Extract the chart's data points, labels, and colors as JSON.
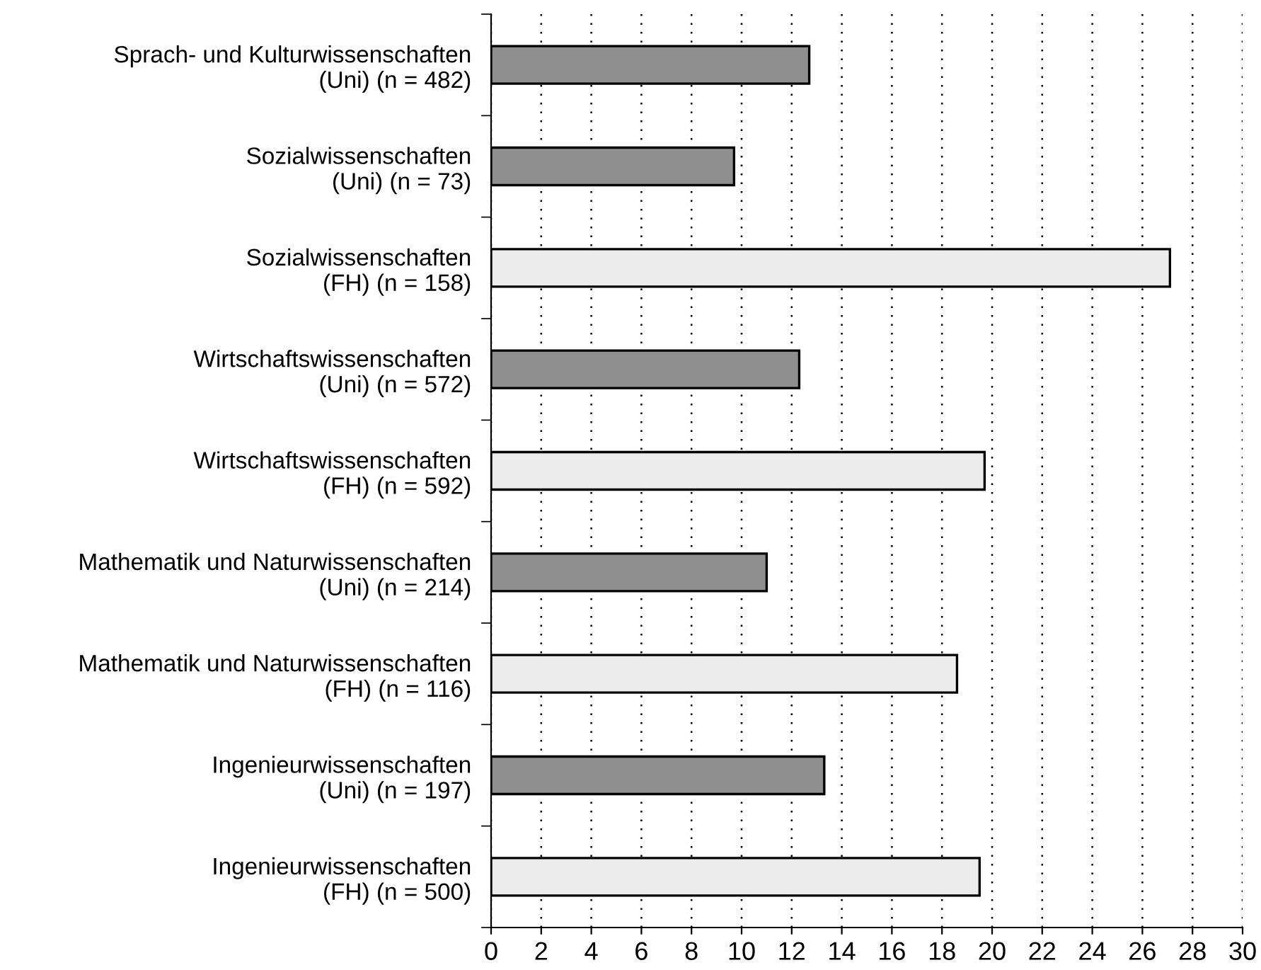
{
  "chart_data": {
    "type": "bar",
    "orientation": "horizontal",
    "categories": [
      "Sprach- und Kulturwissenschaften\n(Uni) (n = 482)",
      "Sozialwissenschaften\n(Uni) (n = 73)",
      "Sozialwissenschaften\n(FH) (n = 158)",
      "Wirtschaftswissenschaften\n(Uni) (n = 572)",
      "Wirtschaftswissenschaften\n(FH) (n = 592)",
      "Mathematik und Naturwissenschaften\n(Uni) (n = 214)",
      "Mathematik und Naturwissenschaften\n(FH) (n = 116)",
      "Ingenieurwissenschaften\n(Uni) (n = 197)",
      "Ingenieurwissenschaften\n(FH) (n = 500)"
    ],
    "values": [
      12.7,
      9.7,
      27.1,
      12.3,
      19.7,
      11.0,
      18.6,
      13.3,
      19.5
    ],
    "colors": [
      "#8f8f8f",
      "#8f8f8f",
      "#ececec",
      "#8f8f8f",
      "#ececec",
      "#8f8f8f",
      "#ececec",
      "#8f8f8f",
      "#ececec"
    ],
    "xlim": [
      0,
      30
    ],
    "xticks": [
      0,
      2,
      4,
      6,
      8,
      10,
      12,
      14,
      16,
      18,
      20,
      22,
      24,
      26,
      28,
      30
    ],
    "grid": "x",
    "legend": false
  }
}
